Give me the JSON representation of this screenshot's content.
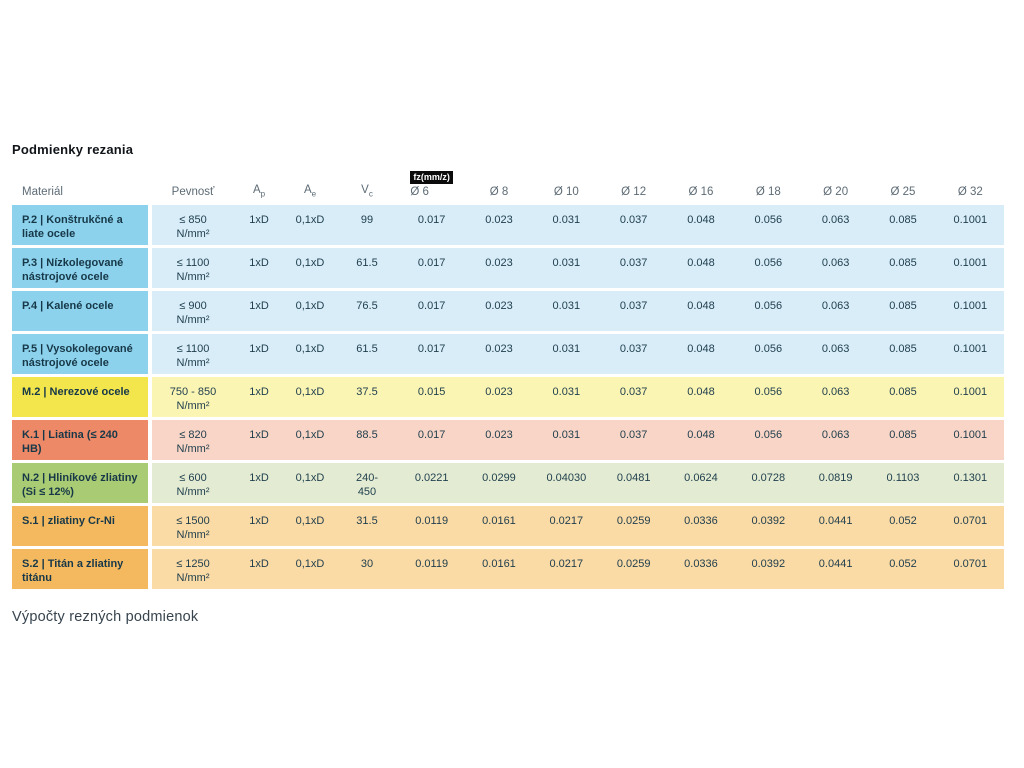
{
  "page": {
    "title": "Podmienky rezania",
    "section_below": "Výpočty rezných podmienok"
  },
  "table": {
    "columns": [
      {
        "key": "material",
        "label": "Materiál"
      },
      {
        "key": "strength",
        "label": "Pevnosť"
      },
      {
        "key": "ap",
        "label": "A",
        "sub": "p"
      },
      {
        "key": "ae",
        "label": "A",
        "sub": "e"
      },
      {
        "key": "vc",
        "label": "V",
        "sub": "c"
      },
      {
        "key": "d6",
        "label": "Ø 6",
        "badge": "fz(mm/z)"
      },
      {
        "key": "d8",
        "label": "Ø 8"
      },
      {
        "key": "d10",
        "label": "Ø 10"
      },
      {
        "key": "d12",
        "label": "Ø 12"
      },
      {
        "key": "d16",
        "label": "Ø 16"
      },
      {
        "key": "d18",
        "label": "Ø 18"
      },
      {
        "key": "d20",
        "label": "Ø 20"
      },
      {
        "key": "d25",
        "label": "Ø 25"
      },
      {
        "key": "d32",
        "label": "Ø 32"
      }
    ],
    "themes": {
      "blue": {
        "head": "#8CD2EC",
        "body": "#D8EDF8"
      },
      "yellow": {
        "head": "#F3E64C",
        "body": "#FBF5B4"
      },
      "red": {
        "head": "#EE8968",
        "body": "#F8D5C6"
      },
      "green": {
        "head": "#A9CB73",
        "body": "#E3ECD3"
      },
      "orange": {
        "head": "#F4B95F",
        "body": "#FADAA5"
      }
    },
    "rows": [
      {
        "material": "P.2 | Konštrukčné a liate ocele",
        "strength": "≤ 850\nN/mm²",
        "ap": "1xD",
        "ae": "0,1xD",
        "vc": "99",
        "theme": "blue",
        "fz": [
          "0.017",
          "0.023",
          "0.031",
          "0.037",
          "0.048",
          "0.056",
          "0.063",
          "0.085",
          "0.1001"
        ]
      },
      {
        "material": "P.3 | Nízkolegované nástrojové ocele",
        "strength": "≤ 1100\nN/mm²",
        "ap": "1xD",
        "ae": "0,1xD",
        "vc": "61.5",
        "theme": "blue",
        "fz": [
          "0.017",
          "0.023",
          "0.031",
          "0.037",
          "0.048",
          "0.056",
          "0.063",
          "0.085",
          "0.1001"
        ]
      },
      {
        "material": "P.4 | Kalené ocele",
        "strength": "≤ 900\nN/mm²",
        "ap": "1xD",
        "ae": "0,1xD",
        "vc": "76.5",
        "theme": "blue",
        "fz": [
          "0.017",
          "0.023",
          "0.031",
          "0.037",
          "0.048",
          "0.056",
          "0.063",
          "0.085",
          "0.1001"
        ]
      },
      {
        "material": "P.5 | Vysokolegované nástrojové ocele",
        "strength": "≤ 1100\nN/mm²",
        "ap": "1xD",
        "ae": "0,1xD",
        "vc": "61.5",
        "theme": "blue",
        "fz": [
          "0.017",
          "0.023",
          "0.031",
          "0.037",
          "0.048",
          "0.056",
          "0.063",
          "0.085",
          "0.1001"
        ]
      },
      {
        "material": "M.2 | Nerezové ocele",
        "strength": "750 - 850\nN/mm²",
        "ap": "1xD",
        "ae": "0,1xD",
        "vc": "37.5",
        "theme": "yellow",
        "fz": [
          "0.015",
          "0.023",
          "0.031",
          "0.037",
          "0.048",
          "0.056",
          "0.063",
          "0.085",
          "0.1001"
        ]
      },
      {
        "material": "K.1 | Liatina (≤ 240 HB)",
        "strength": "≤ 820\nN/mm²",
        "ap": "1xD",
        "ae": "0,1xD",
        "vc": "88.5",
        "theme": "red",
        "fz": [
          "0.017",
          "0.023",
          "0.031",
          "0.037",
          "0.048",
          "0.056",
          "0.063",
          "0.085",
          "0.1001"
        ]
      },
      {
        "material": "N.2 | Hliníkové zliatiny (Si ≤ 12%)",
        "strength": "≤ 600\nN/mm²",
        "ap": "1xD",
        "ae": "0,1xD",
        "vc": "240-\n450",
        "theme": "green",
        "fz": [
          "0.0221",
          "0.0299",
          "0.04030",
          "0.0481",
          "0.0624",
          "0.0728",
          "0.0819",
          "0.1103",
          "0.1301"
        ]
      },
      {
        "material": "S.1 | zliatiny Cr-Ni",
        "strength": "≤ 1500\nN/mm²",
        "ap": "1xD",
        "ae": "0,1xD",
        "vc": "31.5",
        "theme": "orange",
        "fz": [
          "0.0119",
          "0.0161",
          "0.0217",
          "0.0259",
          "0.0336",
          "0.0392",
          "0.0441",
          "0.052",
          "0.0701"
        ]
      },
      {
        "material": "S.2 | Titán a zliatiny titánu",
        "strength": "≤ 1250\nN/mm²",
        "ap": "1xD",
        "ae": "0,1xD",
        "vc": "30",
        "theme": "orange",
        "fz": [
          "0.0119",
          "0.0161",
          "0.0217",
          "0.0259",
          "0.0336",
          "0.0392",
          "0.0441",
          "0.052",
          "0.0701"
        ]
      }
    ]
  }
}
